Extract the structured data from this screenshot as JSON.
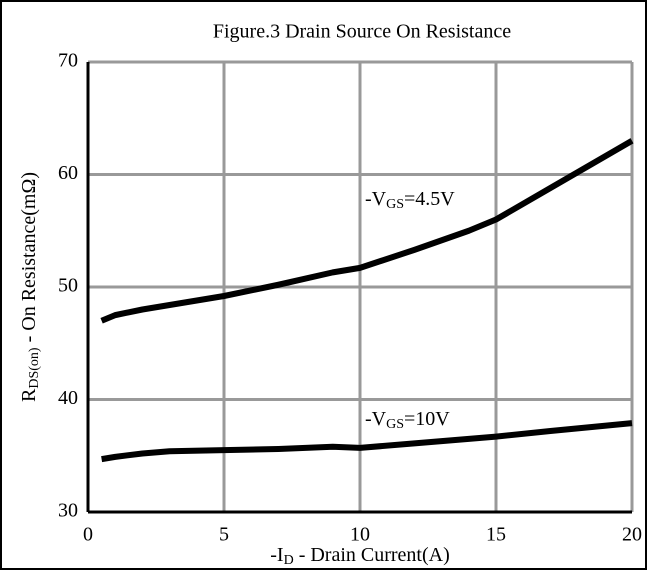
{
  "chart_data": {
    "type": "line",
    "title": "Figure.3 Drain Source On Resistance",
    "xlabel": {
      "pre": "-I",
      "sub": "D",
      "post": " - Drain Current(A)"
    },
    "ylabel": {
      "pre": "R",
      "sub": "DS(on)",
      "post": " - On Resistance(mΩ)"
    },
    "xlim": [
      0,
      20
    ],
    "xticks": [
      0,
      5,
      10,
      15,
      20
    ],
    "ylim": [
      30,
      70
    ],
    "yticks": [
      30,
      40,
      50,
      60,
      70
    ],
    "grid": true,
    "series": [
      {
        "label": {
          "pre": "-V",
          "sub": "GS",
          "post": "=4.5V"
        },
        "color": "#000000",
        "x": [
          0.5,
          1,
          2,
          3,
          5,
          7,
          9,
          10,
          12,
          14,
          15,
          17,
          19,
          20
        ],
        "values": [
          47,
          47.5,
          48,
          48.4,
          49.2,
          50.2,
          51.3,
          51.7,
          53.3,
          55,
          56,
          58.8,
          61.6,
          63
        ]
      },
      {
        "label": {
          "pre": "-V",
          "sub": "GS",
          "post": "=10V"
        },
        "color": "#000000",
        "x": [
          0.5,
          1,
          2,
          3,
          5,
          7,
          9,
          10,
          12,
          15,
          17,
          20
        ],
        "values": [
          34.7,
          34.9,
          35.2,
          35.4,
          35.5,
          35.6,
          35.8,
          35.7,
          36.1,
          36.7,
          37.2,
          37.9
        ]
      }
    ]
  }
}
